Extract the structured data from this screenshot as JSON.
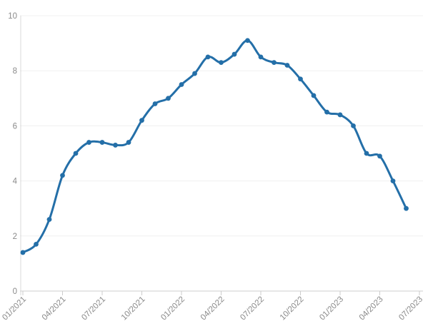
{
  "chart_data": {
    "type": "line",
    "title": "",
    "xlabel": "",
    "ylabel": "",
    "x": [
      "01/2021",
      "02/2021",
      "03/2021",
      "04/2021",
      "05/2021",
      "06/2021",
      "07/2021",
      "08/2021",
      "09/2021",
      "10/2021",
      "11/2021",
      "12/2021",
      "01/2022",
      "02/2022",
      "03/2022",
      "04/2022",
      "05/2022",
      "06/2022",
      "07/2022",
      "08/2022",
      "09/2022",
      "10/2022",
      "11/2022",
      "12/2022",
      "01/2023",
      "02/2023",
      "03/2023",
      "04/2023",
      "05/2023",
      "06/2023"
    ],
    "values": [
      1.4,
      1.7,
      2.6,
      4.2,
      5.0,
      5.4,
      5.4,
      5.3,
      5.4,
      6.2,
      6.8,
      7.0,
      7.5,
      7.9,
      8.5,
      8.3,
      8.6,
      9.1,
      8.5,
      8.3,
      8.2,
      7.7,
      7.1,
      6.5,
      6.4,
      6.0,
      5.0,
      4.9,
      4.0,
      3.0
    ],
    "x_tick_labels": [
      "01/2021",
      "04/2021",
      "07/2021",
      "10/2021",
      "01/2022",
      "04/2022",
      "07/2022",
      "10/2022",
      "01/2023",
      "04/2023",
      "07/2023"
    ],
    "x_tick_every_n_months": 3,
    "x_axis_months_span": 30,
    "y_ticks": [
      "0",
      "2",
      "4",
      "6",
      "8",
      "10"
    ],
    "ylim": [
      0,
      10
    ],
    "grid": "horizontal",
    "legend": "none",
    "marker": "circle",
    "colors": {
      "line": "#246fa8",
      "marker": "#246fa8",
      "grid_line": "#f0f0f0",
      "axis_line": "#d9d9d9",
      "baseline": "#cccccc",
      "tick": "#cccccc",
      "tick_label": "#8a8a8a",
      "background": "#ffffff"
    }
  }
}
